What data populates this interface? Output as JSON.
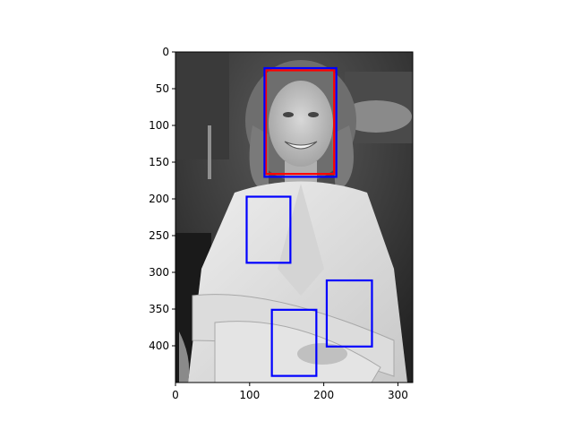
{
  "image": {
    "width": 320,
    "height": 450,
    "description_tone": "grayscale"
  },
  "axes": {
    "x_ticks": [
      0,
      100,
      200,
      300
    ],
    "y_ticks": [
      0,
      50,
      100,
      150,
      200,
      250,
      300,
      350,
      400
    ],
    "xlim": [
      0,
      320
    ],
    "ylim": [
      450,
      0
    ]
  },
  "detections": [
    {
      "label": "face",
      "color": "#ff0000",
      "x1": 122,
      "y1": 25,
      "x2": 214,
      "y2": 166
    },
    {
      "label": "candidate",
      "color": "#0000ff",
      "x1": 120,
      "y1": 22,
      "x2": 217,
      "y2": 170
    },
    {
      "label": "candidate",
      "color": "#0000ff",
      "x1": 96,
      "y1": 197,
      "x2": 155,
      "y2": 287
    },
    {
      "label": "candidate",
      "color": "#0000ff",
      "x1": 204,
      "y1": 311,
      "x2": 265,
      "y2": 401
    },
    {
      "label": "candidate",
      "color": "#0000ff",
      "x1": 130,
      "y1": 351,
      "x2": 190,
      "y2": 441
    }
  ]
}
